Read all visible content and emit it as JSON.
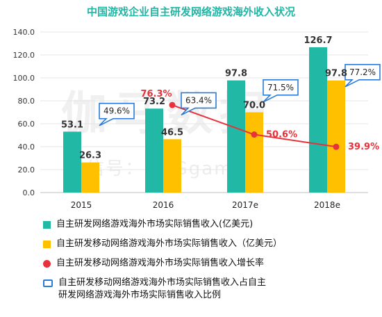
{
  "title": "中国游戏企业自主研发网络游戏海外收入状况",
  "watermark": {
    "main": "伽马数据",
    "sub": "微信号：CNGgame"
  },
  "colors": {
    "teal": "#21b8a6",
    "yellow": "#ffc000",
    "red": "#e8313a",
    "callout": "#2b7bd6",
    "title": "#20b5a5"
  },
  "chart_data": {
    "type": "bar",
    "categories": [
      "2015",
      "2016",
      "2017e",
      "2018e"
    ],
    "ylim": [
      0,
      140
    ],
    "yticks": [
      "0.0",
      "20.0",
      "40.0",
      "60.0",
      "80.0",
      "100.0",
      "120.0",
      "140.0"
    ],
    "grid": true,
    "series": [
      {
        "name": "自主研发网络游戏海外市场实际销售收入(亿美元)",
        "kind": "bar",
        "values": [
          53.1,
          73.2,
          97.8,
          126.7
        ],
        "labels": [
          "53.1",
          "73.2",
          "97.8",
          "126.7"
        ]
      },
      {
        "name": "自主研发移动网络游戏海外市场实际销售收入（亿美元）",
        "kind": "bar",
        "values": [
          26.3,
          46.5,
          70.0,
          97.8
        ],
        "labels": [
          "26.3",
          "46.5",
          "70.0",
          "97.8"
        ]
      },
      {
        "name": "自主研发移动网络游戏海外市场实际销售收入增长率",
        "kind": "line",
        "values": [
          null,
          76.3,
          50.6,
          39.9
        ],
        "labels": [
          "",
          "76.3%",
          "50.6%",
          "39.9%"
        ]
      },
      {
        "name": "自主研发移动网络游戏海外市场实际销售收入占自主研发网络游戏海外市场实际销售收入比例",
        "kind": "callout",
        "values": [
          49.6,
          63.4,
          71.5,
          77.2
        ],
        "labels": [
          "49.6%",
          "63.4%",
          "71.5%",
          "77.2%"
        ]
      }
    ]
  },
  "legend": [
    {
      "marker": "square-teal",
      "lines": [
        "自主研发网络游戏海外市场实际销售收入(亿美元)"
      ]
    },
    {
      "marker": "square-yellow",
      "lines": [
        "自主研发移动网络游戏海外市场实际销售收入（亿美元）"
      ]
    },
    {
      "marker": "dot-red",
      "lines": [
        "自主研发移动网络游戏海外市场实际销售收入增长率"
      ]
    },
    {
      "marker": "callout-blue",
      "lines": [
        "自主研发移动网络游戏海外市场实际销售收入占自主",
        "研发网络游戏海外市场实际销售收入比例"
      ]
    }
  ]
}
